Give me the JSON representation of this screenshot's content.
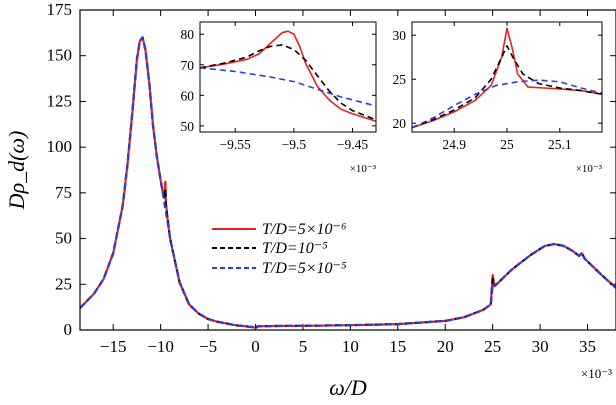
{
  "chart_data": [
    {
      "type": "line",
      "xlabel": "ω/D",
      "ylabel": "Dρ_d(ω)",
      "x_multiplier": "×10⁻³",
      "xlim": [
        -18.5,
        38
      ],
      "ylim": [
        0,
        175
      ],
      "xticks": [
        -15,
        -10,
        -5,
        0,
        5,
        10,
        15,
        20,
        25,
        30,
        35
      ],
      "xtick_labels": [
        "−15",
        "−10",
        "−5",
        "0",
        "5",
        "10",
        "15",
        "20",
        "25",
        "30",
        "35"
      ],
      "yticks": [
        0,
        25,
        50,
        75,
        100,
        125,
        150,
        175
      ],
      "ytick_labels": [
        "0",
        "25",
        "50",
        "75",
        "100",
        "125",
        "150",
        "175"
      ],
      "legend_position": "center",
      "legend": [
        "T/D=5×10⁻⁶",
        "T/D=10⁻⁵",
        "T/D=5×10⁻⁵"
      ],
      "series": [
        {
          "name": "T/D=5×10⁻⁶",
          "color": "#e8231f",
          "style": "solid",
          "x": [
            -18.5,
            -17,
            -16,
            -15,
            -14,
            -13.5,
            -13,
            -12.5,
            -12.2,
            -11.9,
            -11.6,
            -11.2,
            -10.8,
            -10.4,
            -10,
            -9.8,
            -9.6,
            -9.55,
            -9.5,
            -9.45,
            -9.3,
            -9,
            -8,
            -7,
            -6,
            -5,
            -4,
            -3,
            -2,
            -1,
            -0.2,
            0,
            0.2,
            2,
            5,
            10,
            15,
            20,
            22,
            24,
            24.8,
            25,
            25.2,
            25.6,
            27,
            29,
            30.5,
            31.5,
            32.5,
            33.5,
            34.1,
            34.4,
            34.7,
            35.5,
            36.5,
            38
          ],
          "y": [
            12,
            20,
            28,
            42,
            68,
            90,
            118,
            148,
            158,
            160,
            153,
            135,
            112,
            95,
            82,
            76,
            72,
            80,
            81,
            70,
            62,
            50,
            26,
            14,
            9,
            6,
            4.5,
            3.5,
            2.5,
            2,
            1.5,
            1,
            2,
            2.2,
            2.3,
            2.6,
            3.2,
            5,
            7,
            11,
            14,
            30,
            24,
            26,
            33,
            41,
            46,
            47,
            46,
            43,
            40.5,
            42,
            39,
            35,
            30,
            23
          ]
        },
        {
          "name": "T/D=10⁻⁵",
          "color": "#000000",
          "style": "dashed",
          "x": [
            -18.5,
            -17,
            -16,
            -15,
            -14,
            -13.5,
            -13,
            -12.5,
            -12.2,
            -11.9,
            -11.6,
            -11.2,
            -10.8,
            -10.4,
            -10,
            -9.8,
            -9.6,
            -9.5,
            -9.45,
            -9.3,
            -9,
            -8,
            -7,
            -6,
            -5,
            -4,
            -3,
            -2,
            -1,
            -0.2,
            0,
            0.2,
            2,
            5,
            10,
            15,
            20,
            22,
            24,
            24.8,
            25,
            25.2,
            25.6,
            27,
            29,
            30.5,
            31.5,
            32.5,
            33.5,
            34.1,
            34.4,
            34.7,
            35.5,
            36.5,
            38
          ],
          "y": [
            12,
            20,
            28,
            42,
            68,
            90,
            118,
            148,
            158,
            160,
            153,
            135,
            112,
            95,
            82,
            76,
            73,
            76,
            68,
            62,
            50,
            26,
            14,
            9,
            6,
            4.5,
            3.5,
            2.5,
            2,
            1.5,
            1,
            2,
            2.2,
            2.3,
            2.6,
            3.2,
            5,
            7,
            11,
            14,
            28,
            24,
            26,
            33,
            41,
            46,
            47,
            46,
            43,
            40.5,
            42,
            39,
            35,
            30,
            23
          ]
        },
        {
          "name": "T/D=5×10⁻⁵",
          "color": "#2b3fe0",
          "style": "dashed",
          "x": [
            -18.5,
            -17,
            -16,
            -15,
            -14,
            -13.5,
            -13,
            -12.5,
            -12.2,
            -11.9,
            -11.6,
            -11.2,
            -10.8,
            -10.4,
            -10,
            -9.8,
            -9.6,
            -9.5,
            -9.3,
            -9,
            -8,
            -7,
            -6,
            -5,
            -4,
            -3,
            -2,
            -1,
            -0.2,
            0,
            0.2,
            2,
            5,
            10,
            15,
            20,
            22,
            24,
            24.8,
            25,
            25.2,
            25.6,
            27,
            29,
            30.5,
            31.5,
            32.5,
            33.5,
            34.1,
            34.4,
            34.7,
            35.5,
            36.5,
            38
          ],
          "y": [
            12,
            20,
            28,
            42,
            68,
            90,
            118,
            148,
            158,
            160,
            153,
            135,
            112,
            95,
            82,
            76,
            69,
            66,
            60,
            50,
            26,
            14,
            9,
            6,
            4.5,
            3.5,
            2.5,
            2,
            1.5,
            1,
            2,
            2.2,
            2.3,
            2.6,
            3.2,
            5,
            7,
            11,
            14,
            25,
            24,
            26,
            33,
            41,
            46,
            47,
            46,
            43,
            40.5,
            42,
            39,
            35,
            30,
            23
          ]
        }
      ]
    },
    {
      "type": "line",
      "inset": "left",
      "x_multiplier": "×10⁻³",
      "xlim": [
        -9.58,
        -9.43
      ],
      "ylim": [
        48,
        84
      ],
      "xticks": [
        -9.55,
        -9.5,
        -9.45
      ],
      "xtick_labels": [
        "−9.55",
        "−9.5",
        "−9.45"
      ],
      "yticks": [
        50,
        60,
        70,
        80
      ],
      "ytick_labels": [
        "50",
        "60",
        "70",
        "80"
      ],
      "series": [
        {
          "name": "T/D=5×10⁻⁶",
          "color": "#e8231f",
          "style": "solid",
          "x": [
            -9.58,
            -9.56,
            -9.54,
            -9.53,
            -9.52,
            -9.51,
            -9.505,
            -9.5,
            -9.495,
            -9.49,
            -9.48,
            -9.47,
            -9.46,
            -9.45,
            -9.43
          ],
          "y": [
            69,
            70.2,
            71.8,
            73.5,
            77,
            80.5,
            81,
            80,
            76,
            70.5,
            63,
            58.5,
            55.5,
            54,
            51.5
          ]
        },
        {
          "name": "T/D=10⁻⁵",
          "color": "#000000",
          "style": "dashed",
          "x": [
            -9.58,
            -9.56,
            -9.54,
            -9.53,
            -9.52,
            -9.51,
            -9.5,
            -9.49,
            -9.48,
            -9.47,
            -9.46,
            -9.45,
            -9.43
          ],
          "y": [
            69,
            70.5,
            72.5,
            74.5,
            76,
            76.5,
            75,
            71.5,
            66.5,
            61.5,
            57.5,
            55,
            52
          ]
        },
        {
          "name": "T/D=5×10⁻⁵",
          "color": "#2b3fe0",
          "style": "dashed",
          "x": [
            -9.58,
            -9.55,
            -9.52,
            -9.5,
            -9.48,
            -9.46,
            -9.43
          ],
          "y": [
            69,
            67.8,
            66,
            64.5,
            62,
            59.5,
            56.5
          ]
        }
      ]
    },
    {
      "type": "line",
      "inset": "right",
      "x_multiplier": "×10⁻³",
      "xlim": [
        24.82,
        25.18
      ],
      "ylim": [
        19,
        31.5
      ],
      "xticks": [
        24.9,
        25,
        25.1
      ],
      "xtick_labels": [
        "24.9",
        "25",
        "25.1"
      ],
      "yticks": [
        20,
        25,
        30
      ],
      "ytick_labels": [
        "20",
        "25",
        "30"
      ],
      "series": [
        {
          "name": "T/D=5×10⁻⁶",
          "color": "#e8231f",
          "style": "solid",
          "x": [
            24.82,
            24.86,
            24.9,
            24.94,
            24.97,
            24.99,
            25.0,
            25.01,
            25.02,
            25.04,
            25.07,
            25.1,
            25.14,
            25.18
          ],
          "y": [
            19.5,
            20.3,
            21.3,
            22.6,
            24.3,
            27.5,
            30.8,
            28.5,
            25.6,
            24.1,
            24.0,
            23.9,
            23.7,
            23.3
          ]
        },
        {
          "name": "T/D=10⁻⁵",
          "color": "#000000",
          "style": "dashed",
          "x": [
            24.82,
            24.86,
            24.9,
            24.94,
            24.97,
            24.99,
            25.0,
            25.01,
            25.03,
            25.06,
            25.1,
            25.14,
            25.18
          ],
          "y": [
            19.5,
            20.4,
            21.5,
            22.9,
            25.0,
            27.5,
            28.8,
            27.6,
            25.6,
            24.5,
            24.0,
            23.7,
            23.3
          ]
        },
        {
          "name": "T/D=5×10⁻⁵",
          "color": "#2b3fe0",
          "style": "dashed",
          "x": [
            24.82,
            24.86,
            24.9,
            24.94,
            24.98,
            25.02,
            25.06,
            25.1,
            25.14,
            25.18
          ],
          "y": [
            19.5,
            20.6,
            22.0,
            23.3,
            24.3,
            24.7,
            24.9,
            24.7,
            24.0,
            23.4
          ]
        }
      ]
    }
  ]
}
